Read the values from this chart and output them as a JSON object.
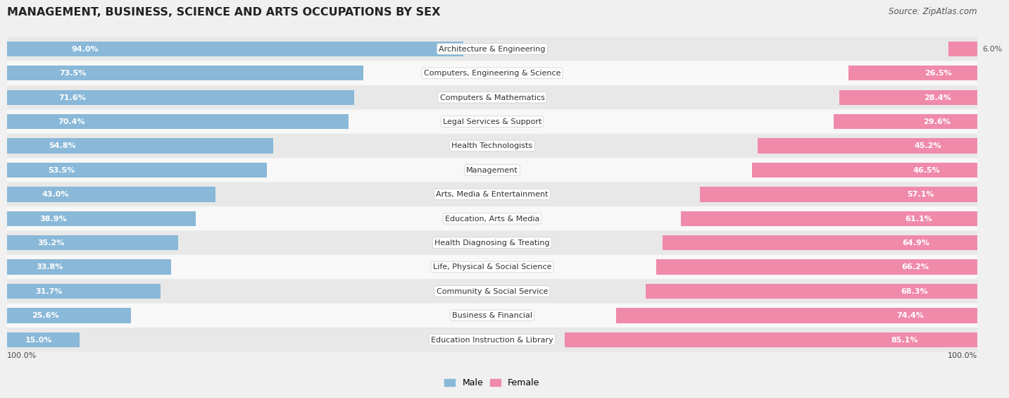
{
  "title": "MANAGEMENT, BUSINESS, SCIENCE AND ARTS OCCUPATIONS BY SEX",
  "source": "Source: ZipAtlas.com",
  "categories": [
    "Architecture & Engineering",
    "Computers, Engineering & Science",
    "Computers & Mathematics",
    "Legal Services & Support",
    "Health Technologists",
    "Management",
    "Arts, Media & Entertainment",
    "Education, Arts & Media",
    "Health Diagnosing & Treating",
    "Life, Physical & Social Science",
    "Community & Social Service",
    "Business & Financial",
    "Education Instruction & Library"
  ],
  "male_pct": [
    94.0,
    73.5,
    71.6,
    70.4,
    54.8,
    53.5,
    43.0,
    38.9,
    35.2,
    33.8,
    31.7,
    25.6,
    15.0
  ],
  "female_pct": [
    6.0,
    26.5,
    28.4,
    29.6,
    45.2,
    46.5,
    57.1,
    61.1,
    64.9,
    66.2,
    68.3,
    74.4,
    85.1
  ],
  "male_color": "#89b8d8",
  "female_color": "#f08aaa",
  "bg_color": "#f0f0f0",
  "row_bg_even": "#e8e8e8",
  "row_bg_odd": "#f8f8f8",
  "title_fontsize": 11.5,
  "label_fontsize": 8.0,
  "pct_fontsize": 8.0,
  "source_fontsize": 8.5,
  "legend_fontsize": 9.0
}
